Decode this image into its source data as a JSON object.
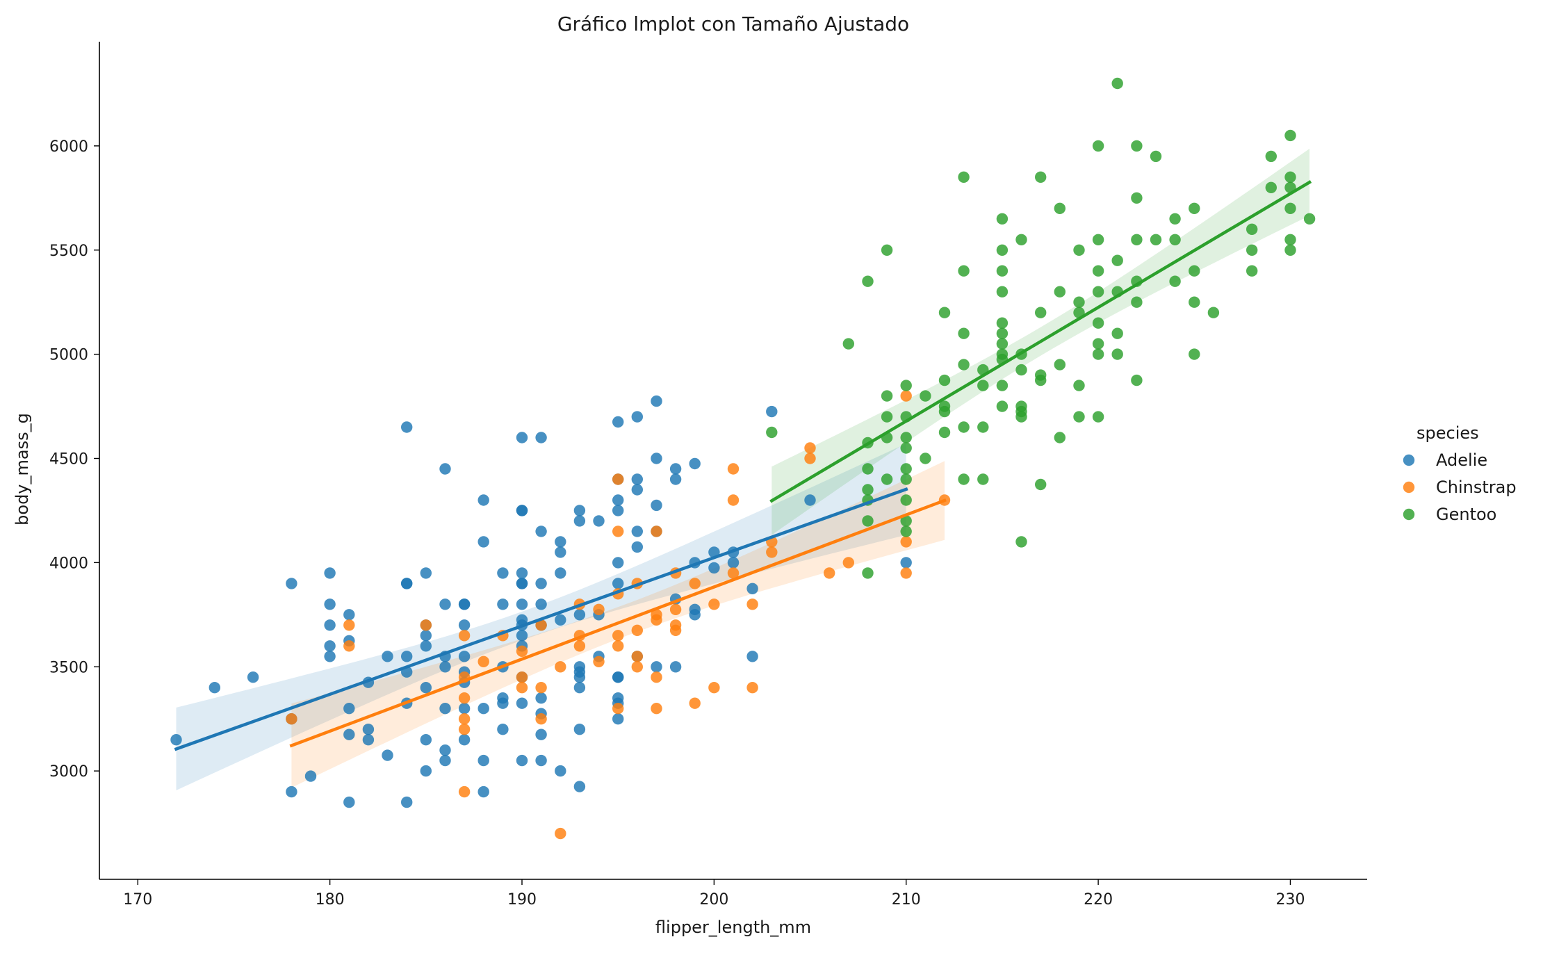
{
  "chart_data": {
    "type": "scatter",
    "title": "Gráfico lmplot con Tamaño Ajustado",
    "xlabel": "flipper_length_mm",
    "ylabel": "body_mass_g",
    "xlim": [
      168,
      234
    ],
    "ylim": [
      2480,
      6500
    ],
    "xticks": [
      170,
      180,
      190,
      200,
      210,
      220,
      230
    ],
    "yticks": [
      3000,
      3500,
      4000,
      4500,
      5000,
      5500,
      6000
    ],
    "legend": {
      "title": "species",
      "placement": "right"
    },
    "series": [
      {
        "name": "Adelie",
        "color": "#1f77b4",
        "fit": {
          "x0": 172,
          "x1": 210,
          "intercept": -2536,
          "slope": 32.8
        },
        "points": [
          [
            172,
            3150
          ],
          [
            174,
            3400
          ],
          [
            176,
            3450
          ],
          [
            178,
            3900
          ],
          [
            178,
            2900
          ],
          [
            178,
            3250
          ],
          [
            179,
            2975
          ],
          [
            180,
            3950
          ],
          [
            180,
            3800
          ],
          [
            180,
            3700
          ],
          [
            180,
            3600
          ],
          [
            180,
            3550
          ],
          [
            181,
            3750
          ],
          [
            181,
            3625
          ],
          [
            181,
            3300
          ],
          [
            181,
            3175
          ],
          [
            181,
            2850
          ],
          [
            182,
            3425
          ],
          [
            182,
            3200
          ],
          [
            182,
            3150
          ],
          [
            183,
            3550
          ],
          [
            183,
            3075
          ],
          [
            184,
            4650
          ],
          [
            184,
            3900
          ],
          [
            184,
            3900
          ],
          [
            184,
            3550
          ],
          [
            184,
            3475
          ],
          [
            184,
            3325
          ],
          [
            184,
            2850
          ],
          [
            185,
            3950
          ],
          [
            185,
            3700
          ],
          [
            185,
            3650
          ],
          [
            185,
            3600
          ],
          [
            185,
            3400
          ],
          [
            185,
            3150
          ],
          [
            185,
            3000
          ],
          [
            186,
            4450
          ],
          [
            186,
            3800
          ],
          [
            186,
            3550
          ],
          [
            186,
            3500
          ],
          [
            186,
            3300
          ],
          [
            186,
            3100
          ],
          [
            186,
            3050
          ],
          [
            187,
            3800
          ],
          [
            187,
            3800
          ],
          [
            187,
            3700
          ],
          [
            187,
            3550
          ],
          [
            187,
            3475
          ],
          [
            187,
            3425
          ],
          [
            187,
            3300
          ],
          [
            187,
            3150
          ],
          [
            188,
            4300
          ],
          [
            188,
            4100
          ],
          [
            188,
            3300
          ],
          [
            188,
            3050
          ],
          [
            188,
            2900
          ],
          [
            189,
            3950
          ],
          [
            189,
            3800
          ],
          [
            189,
            3500
          ],
          [
            189,
            3350
          ],
          [
            189,
            3325
          ],
          [
            189,
            3200
          ],
          [
            190,
            4600
          ],
          [
            190,
            4250
          ],
          [
            190,
            4250
          ],
          [
            190,
            3950
          ],
          [
            190,
            3900
          ],
          [
            190,
            3900
          ],
          [
            190,
            3800
          ],
          [
            190,
            3725
          ],
          [
            190,
            3700
          ],
          [
            190,
            3650
          ],
          [
            190,
            3600
          ],
          [
            190,
            3450
          ],
          [
            190,
            3325
          ],
          [
            190,
            3050
          ],
          [
            191,
            4600
          ],
          [
            191,
            4150
          ],
          [
            191,
            3900
          ],
          [
            191,
            3800
          ],
          [
            191,
            3700
          ],
          [
            191,
            3350
          ],
          [
            191,
            3275
          ],
          [
            191,
            3175
          ],
          [
            191,
            3050
          ],
          [
            192,
            4100
          ],
          [
            192,
            4050
          ],
          [
            192,
            3950
          ],
          [
            192,
            3725
          ],
          [
            192,
            3000
          ],
          [
            193,
            4250
          ],
          [
            193,
            4200
          ],
          [
            193,
            3750
          ],
          [
            193,
            3500
          ],
          [
            193,
            3475
          ],
          [
            193,
            3450
          ],
          [
            193,
            3400
          ],
          [
            193,
            3200
          ],
          [
            193,
            2925
          ],
          [
            194,
            4200
          ],
          [
            194,
            3750
          ],
          [
            194,
            3550
          ],
          [
            195,
            4675
          ],
          [
            195,
            4400
          ],
          [
            195,
            4300
          ],
          [
            195,
            4250
          ],
          [
            195,
            4000
          ],
          [
            195,
            3900
          ],
          [
            195,
            3450
          ],
          [
            195,
            3450
          ],
          [
            195,
            3350
          ],
          [
            195,
            3325
          ],
          [
            195,
            3250
          ],
          [
            196,
            4700
          ],
          [
            196,
            4400
          ],
          [
            196,
            4350
          ],
          [
            196,
            4150
          ],
          [
            196,
            4075
          ],
          [
            196,
            3550
          ],
          [
            197,
            4775
          ],
          [
            197,
            4500
          ],
          [
            197,
            4275
          ],
          [
            197,
            4150
          ],
          [
            197,
            3500
          ],
          [
            198,
            4450
          ],
          [
            198,
            4400
          ],
          [
            198,
            3825
          ],
          [
            198,
            3500
          ],
          [
            199,
            4475
          ],
          [
            199,
            4000
          ],
          [
            199,
            3775
          ],
          [
            199,
            3750
          ],
          [
            200,
            4050
          ],
          [
            200,
            3975
          ],
          [
            201,
            4050
          ],
          [
            201,
            4000
          ],
          [
            202,
            3875
          ],
          [
            202,
            3550
          ],
          [
            203,
            4725
          ],
          [
            205,
            4300
          ],
          [
            210,
            4000
          ]
        ]
      },
      {
        "name": "Chinstrap",
        "color": "#ff7f0e",
        "fit": {
          "x0": 178,
          "x1": 212,
          "intercept": -3037,
          "slope": 34.6
        },
        "points": [
          [
            178,
            3250
          ],
          [
            181,
            3700
          ],
          [
            181,
            3600
          ],
          [
            185,
            3700
          ],
          [
            187,
            3650
          ],
          [
            187,
            3450
          ],
          [
            187,
            3350
          ],
          [
            187,
            3250
          ],
          [
            187,
            3200
          ],
          [
            187,
            2900
          ],
          [
            188,
            3525
          ],
          [
            189,
            3650
          ],
          [
            190,
            3575
          ],
          [
            190,
            3450
          ],
          [
            190,
            3400
          ],
          [
            191,
            3700
          ],
          [
            191,
            3400
          ],
          [
            191,
            3250
          ],
          [
            192,
            3500
          ],
          [
            192,
            2700
          ],
          [
            193,
            3800
          ],
          [
            193,
            3650
          ],
          [
            193,
            3600
          ],
          [
            194,
            3775
          ],
          [
            194,
            3525
          ],
          [
            195,
            4400
          ],
          [
            195,
            4150
          ],
          [
            195,
            3850
          ],
          [
            195,
            3650
          ],
          [
            195,
            3600
          ],
          [
            195,
            3300
          ],
          [
            196,
            3900
          ],
          [
            196,
            3675
          ],
          [
            196,
            3550
          ],
          [
            196,
            3500
          ],
          [
            197,
            4150
          ],
          [
            197,
            3750
          ],
          [
            197,
            3725
          ],
          [
            197,
            3450
          ],
          [
            197,
            3300
          ],
          [
            198,
            3950
          ],
          [
            198,
            3775
          ],
          [
            198,
            3700
          ],
          [
            198,
            3675
          ],
          [
            199,
            3900
          ],
          [
            199,
            3325
          ],
          [
            200,
            3800
          ],
          [
            200,
            3400
          ],
          [
            201,
            4450
          ],
          [
            201,
            4300
          ],
          [
            201,
            3950
          ],
          [
            202,
            3800
          ],
          [
            202,
            3400
          ],
          [
            203,
            4100
          ],
          [
            203,
            4050
          ],
          [
            205,
            4550
          ],
          [
            205,
            4500
          ],
          [
            206,
            3950
          ],
          [
            207,
            4000
          ],
          [
            210,
            4800
          ],
          [
            210,
            4100
          ],
          [
            210,
            3950
          ],
          [
            212,
            4300
          ]
        ]
      },
      {
        "name": "Gentoo",
        "color": "#2ca02c",
        "fit": {
          "x0": 203,
          "x1": 231,
          "intercept": -6787,
          "slope": 54.6
        },
        "points": [
          [
            203,
            4625
          ],
          [
            207,
            5050
          ],
          [
            208,
            5350
          ],
          [
            208,
            4575
          ],
          [
            208,
            4450
          ],
          [
            208,
            4350
          ],
          [
            208,
            4300
          ],
          [
            208,
            4200
          ],
          [
            208,
            3950
          ],
          [
            209,
            5500
          ],
          [
            209,
            4800
          ],
          [
            209,
            4700
          ],
          [
            209,
            4600
          ],
          [
            209,
            4400
          ],
          [
            210,
            4850
          ],
          [
            210,
            4700
          ],
          [
            210,
            4600
          ],
          [
            210,
            4550
          ],
          [
            210,
            4450
          ],
          [
            210,
            4400
          ],
          [
            210,
            4300
          ],
          [
            210,
            4200
          ],
          [
            210,
            4150
          ],
          [
            211,
            4800
          ],
          [
            211,
            4500
          ],
          [
            212,
            5200
          ],
          [
            212,
            4875
          ],
          [
            212,
            4750
          ],
          [
            212,
            4725
          ],
          [
            212,
            4625
          ],
          [
            213,
            5850
          ],
          [
            213,
            5400
          ],
          [
            213,
            5100
          ],
          [
            213,
            4950
          ],
          [
            213,
            4650
          ],
          [
            213,
            4400
          ],
          [
            214,
            4925
          ],
          [
            214,
            4850
          ],
          [
            214,
            4650
          ],
          [
            214,
            4400
          ],
          [
            215,
            5650
          ],
          [
            215,
            5500
          ],
          [
            215,
            5400
          ],
          [
            215,
            5300
          ],
          [
            215,
            5150
          ],
          [
            215,
            5100
          ],
          [
            215,
            5050
          ],
          [
            215,
            5000
          ],
          [
            215,
            4975
          ],
          [
            215,
            4850
          ],
          [
            215,
            4750
          ],
          [
            216,
            5550
          ],
          [
            216,
            5000
          ],
          [
            216,
            4925
          ],
          [
            216,
            4750
          ],
          [
            216,
            4725
          ],
          [
            216,
            4700
          ],
          [
            216,
            4100
          ],
          [
            217,
            5850
          ],
          [
            217,
            5200
          ],
          [
            217,
            4900
          ],
          [
            217,
            4875
          ],
          [
            217,
            4375
          ],
          [
            218,
            5700
          ],
          [
            218,
            5300
          ],
          [
            218,
            4950
          ],
          [
            218,
            4600
          ],
          [
            219,
            5500
          ],
          [
            219,
            5250
          ],
          [
            219,
            5200
          ],
          [
            219,
            4850
          ],
          [
            219,
            4700
          ],
          [
            220,
            6000
          ],
          [
            220,
            5550
          ],
          [
            220,
            5400
          ],
          [
            220,
            5300
          ],
          [
            220,
            5150
          ],
          [
            220,
            5050
          ],
          [
            220,
            5000
          ],
          [
            220,
            4700
          ],
          [
            221,
            6300
          ],
          [
            221,
            5450
          ],
          [
            221,
            5300
          ],
          [
            221,
            5100
          ],
          [
            221,
            5000
          ],
          [
            222,
            6000
          ],
          [
            222,
            5750
          ],
          [
            222,
            5550
          ],
          [
            222,
            5350
          ],
          [
            222,
            5250
          ],
          [
            222,
            4875
          ],
          [
            223,
            5950
          ],
          [
            223,
            5550
          ],
          [
            224,
            5650
          ],
          [
            224,
            5550
          ],
          [
            224,
            5350
          ],
          [
            225,
            5700
          ],
          [
            225,
            5400
          ],
          [
            225,
            5250
          ],
          [
            225,
            5000
          ],
          [
            226,
            5200
          ],
          [
            228,
            5600
          ],
          [
            228,
            5500
          ],
          [
            228,
            5400
          ],
          [
            229,
            5950
          ],
          [
            229,
            5800
          ],
          [
            230,
            6050
          ],
          [
            230,
            5850
          ],
          [
            230,
            5800
          ],
          [
            230,
            5700
          ],
          [
            230,
            5550
          ],
          [
            230,
            5500
          ],
          [
            231,
            5650
          ]
        ]
      }
    ]
  }
}
